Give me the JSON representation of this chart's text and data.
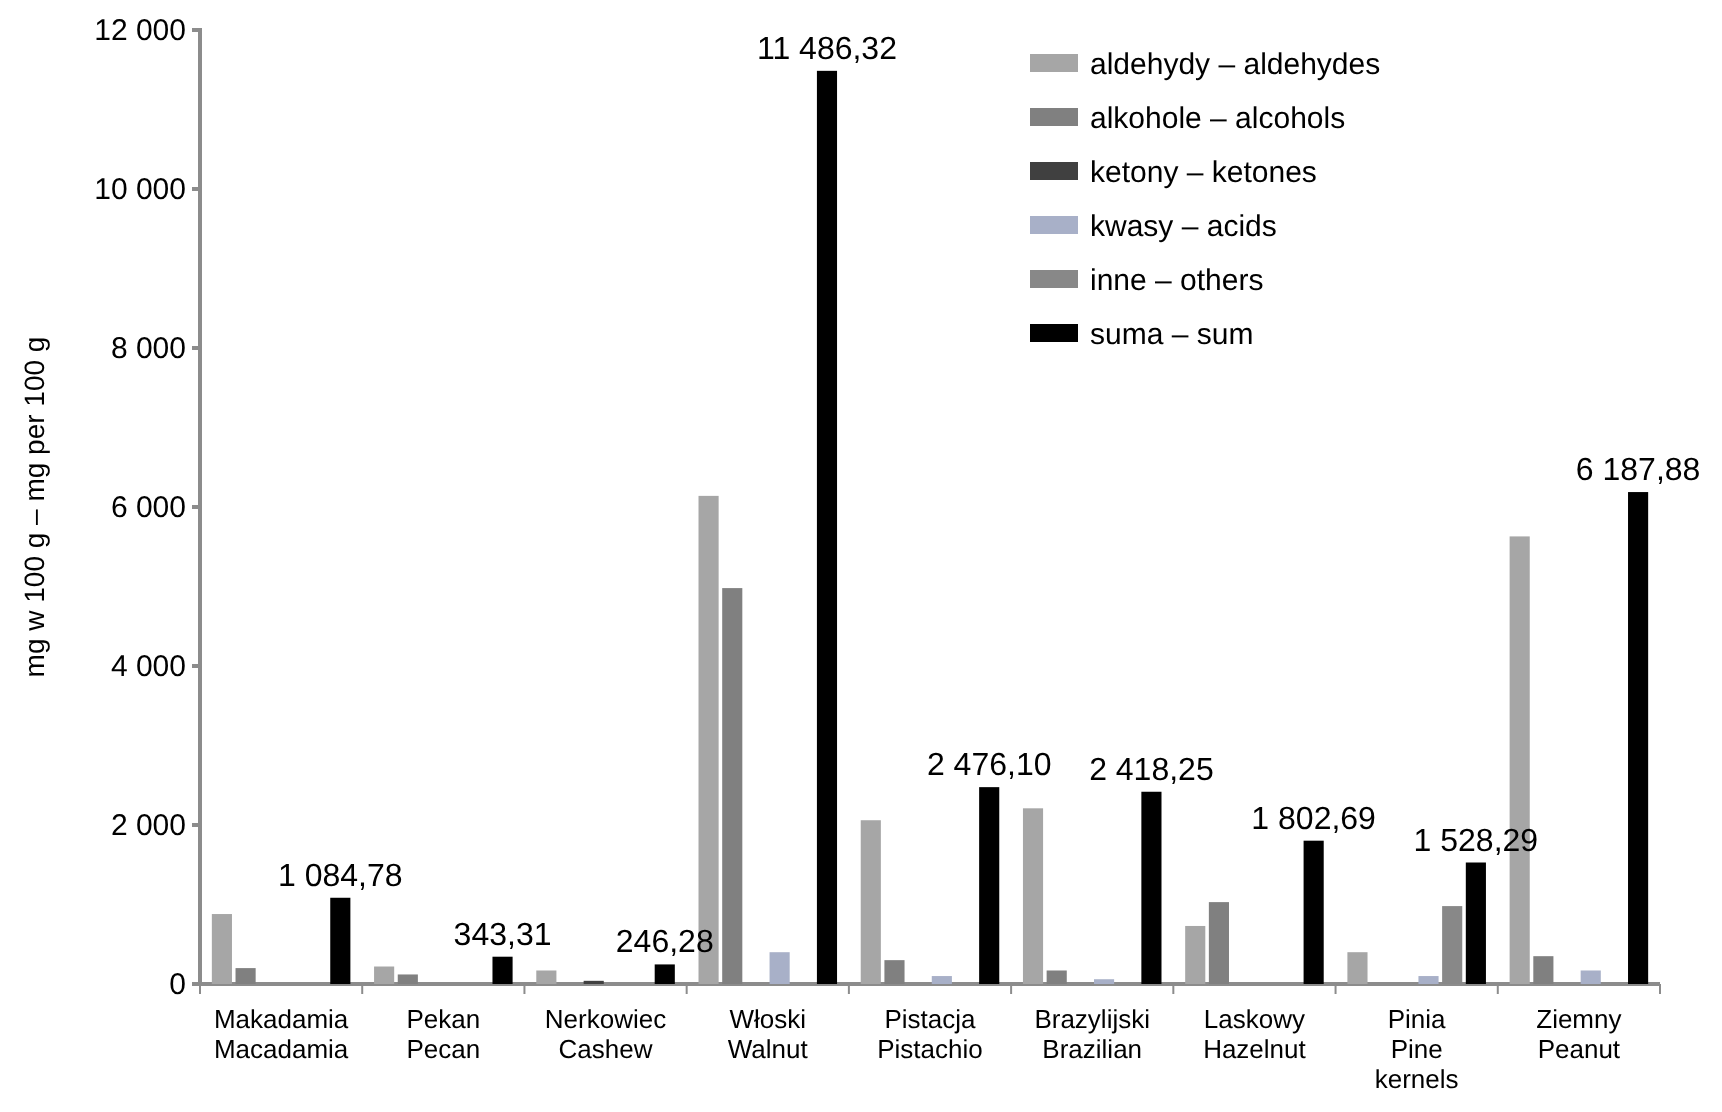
{
  "chart_data": {
    "type": "bar",
    "ylabel": "mg w 100 g – mg per 100 g",
    "categories": [
      "Makadamia Macadamia",
      "Pekan Pecan",
      "Nerkowiec Cashew",
      "Włoski Walnut",
      "Pistacja Pistachio",
      "Brazylijski Brazilian",
      "Laskowy Hazelnut",
      "Pinia Pine kernels",
      "Ziemny Peanut"
    ],
    "series": [
      {
        "name": "aldehydy – aldehydes",
        "color": "#a6a6a6",
        "values": [
          880,
          220,
          170,
          6140,
          2060,
          2210,
          730,
          400,
          5630
        ]
      },
      {
        "name": "alkohole – alcohols",
        "color": "#808080",
        "values": [
          200,
          120,
          0,
          4980,
          300,
          170,
          1030,
          0,
          350
        ]
      },
      {
        "name": "ketony – ketones",
        "color": "#404040",
        "values": [
          0,
          0,
          40,
          0,
          0,
          0,
          0,
          0,
          0
        ]
      },
      {
        "name": "kwasy – acids",
        "color": "#a8b0c8",
        "values": [
          0,
          0,
          0,
          400,
          100,
          60,
          0,
          100,
          170
        ]
      },
      {
        "name": "inne – others",
        "color": "#888888",
        "values": [
          0,
          0,
          0,
          0,
          0,
          0,
          0,
          980,
          0
        ]
      },
      {
        "name": "suma – sum",
        "color": "#000000",
        "values": [
          1084.78,
          343.31,
          246.28,
          11486.32,
          2476.1,
          2418.25,
          1802.69,
          1528.29,
          6187.88
        ],
        "value_labels": [
          "1 084,78",
          "343,31",
          "246,28",
          "11 486,32",
          "2 476,10",
          "2 418,25",
          "1 802,69",
          "1 528,29",
          "6 187,88"
        ]
      }
    ],
    "ylim": [
      0,
      12000
    ],
    "yticks": [
      {
        "value": 0,
        "label": "0"
      },
      {
        "value": 2000,
        "label": "2 000"
      },
      {
        "value": 4000,
        "label": "4 000"
      },
      {
        "value": 6000,
        "label": "6 000"
      },
      {
        "value": 8000,
        "label": "8 000"
      },
      {
        "value": 10000,
        "label": "10 000"
      },
      {
        "value": 12000,
        "label": "12 000"
      }
    ],
    "legend": "top right"
  }
}
